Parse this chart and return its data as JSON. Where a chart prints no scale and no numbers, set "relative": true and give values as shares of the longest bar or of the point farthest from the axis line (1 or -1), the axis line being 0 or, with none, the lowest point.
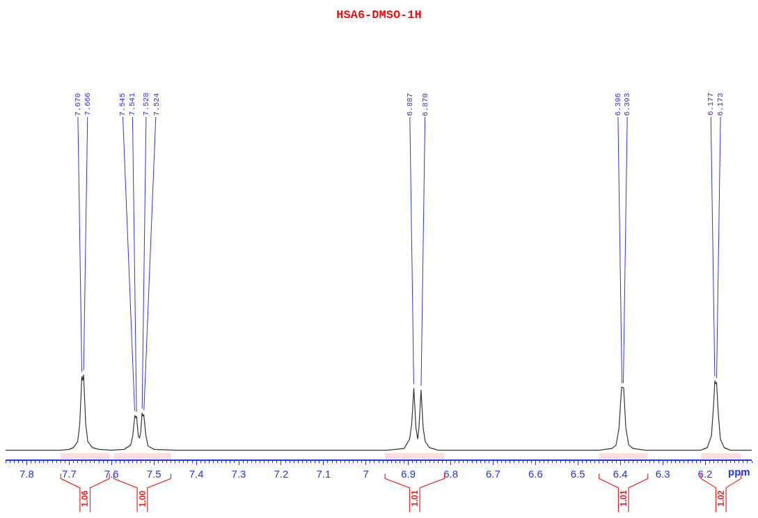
{
  "chart_data": {
    "type": "line",
    "title": "HSA6-DMSO-1H",
    "xlabel": "ppm",
    "relative": true,
    "grid": false,
    "marker": "none",
    "line_style": "solid",
    "xlim": [
      7.85,
      6.09
    ],
    "xticks": [
      7.8,
      7.7,
      7.6,
      7.5,
      7.4,
      7.3,
      7.2,
      7.1,
      7.0,
      6.9,
      6.8,
      6.7,
      6.6,
      6.5,
      6.4,
      6.3,
      6.2
    ],
    "x": [
      7.85,
      7.72,
      7.7,
      7.69,
      7.68,
      7.675,
      7.67,
      7.668,
      7.666,
      7.661,
      7.656,
      7.645,
      7.63,
      7.6,
      7.57,
      7.555,
      7.55,
      7.545,
      7.543,
      7.541,
      7.537,
      7.534,
      7.531,
      7.528,
      7.526,
      7.524,
      7.519,
      7.514,
      7.5,
      7.45,
      7.16,
      6.95,
      6.91,
      6.897,
      6.892,
      6.887,
      6.882,
      6.878,
      6.875,
      6.87,
      6.865,
      6.86,
      6.85,
      6.83,
      6.45,
      6.42,
      6.41,
      6.403,
      6.397,
      6.394,
      6.392,
      6.387,
      6.38,
      6.37,
      6.34,
      6.21,
      6.195,
      6.185,
      6.18,
      6.177,
      6.175,
      6.173,
      6.169,
      6.164,
      6.155,
      6.14,
      6.09
    ],
    "series": [
      {
        "color": "#333333",
        "values": [
          0.11,
          0.11,
          0.12,
          0.14,
          0.21,
          0.42,
          0.98,
          0.93,
          1.0,
          0.42,
          0.21,
          0.14,
          0.12,
          0.11,
          0.12,
          0.17,
          0.28,
          0.52,
          0.49,
          0.51,
          0.28,
          0.25,
          0.33,
          0.55,
          0.51,
          0.53,
          0.28,
          0.16,
          0.12,
          0.11,
          0.11,
          0.11,
          0.13,
          0.24,
          0.42,
          0.84,
          0.37,
          0.24,
          0.37,
          0.82,
          0.37,
          0.21,
          0.14,
          0.11,
          0.11,
          0.13,
          0.17,
          0.37,
          0.85,
          0.85,
          0.84,
          0.37,
          0.17,
          0.13,
          0.11,
          0.11,
          0.14,
          0.28,
          0.64,
          0.93,
          0.89,
          0.91,
          0.55,
          0.24,
          0.14,
          0.11,
          0.11
        ]
      }
    ],
    "annotations": [
      {
        "text": "7.670",
        "x": 7.67,
        "y": 0.98
      },
      {
        "text": "7.666",
        "x": 7.666,
        "y": 1.0
      },
      {
        "text": "7.545",
        "x": 7.545,
        "y": 0.52
      },
      {
        "text": "7.541",
        "x": 7.541,
        "y": 0.51
      },
      {
        "text": "7.528",
        "x": 7.528,
        "y": 0.55
      },
      {
        "text": "7.524",
        "x": 7.524,
        "y": 0.53
      },
      {
        "text": "6.887",
        "x": 6.887,
        "y": 0.84
      },
      {
        "text": "6.870",
        "x": 6.87,
        "y": 0.82
      },
      {
        "text": "6.396",
        "x": 6.396,
        "y": 0.85
      },
      {
        "text": "6.393",
        "x": 6.393,
        "y": 0.85
      },
      {
        "text": "6.177",
        "x": 6.177,
        "y": 0.93
      },
      {
        "text": "6.173",
        "x": 6.173,
        "y": 0.91
      }
    ],
    "bands": [
      {
        "axis": "x",
        "from": 7.72,
        "to": 7.605,
        "label": "1.06",
        "color": "#ee2222"
      },
      {
        "axis": "x",
        "from": 7.595,
        "to": 7.46,
        "label": "1.00",
        "color": "#ee2222"
      },
      {
        "axis": "x",
        "from": 6.955,
        "to": 6.815,
        "label": "1.01",
        "color": "#ee2222"
      },
      {
        "axis": "x",
        "from": 6.45,
        "to": 6.335,
        "label": "1.01",
        "color": "#ee2222"
      },
      {
        "axis": "x",
        "from": 6.21,
        "to": 6.115,
        "label": "1.02",
        "color": "#ee2222"
      }
    ]
  }
}
